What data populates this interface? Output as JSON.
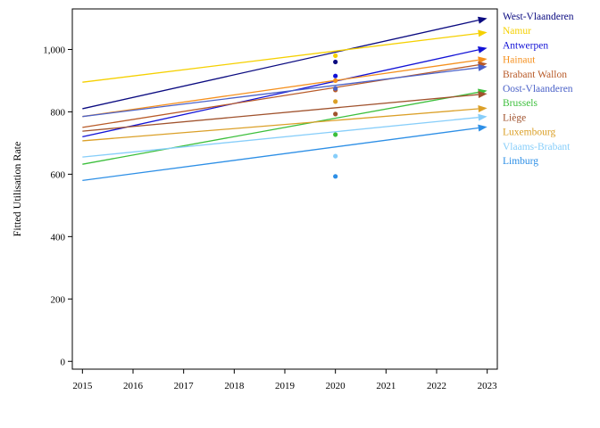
{
  "chart_data": {
    "type": "line",
    "title": "",
    "xlabel": "",
    "ylabel": "Fitted Utilisation Rate",
    "xlim": [
      2014.8,
      2023.2
    ],
    "ylim": [
      -25,
      1130
    ],
    "x_ticks": [
      2015,
      2016,
      2017,
      2018,
      2019,
      2020,
      2021,
      2022,
      2023
    ],
    "y_ticks": [
      0,
      200,
      400,
      600,
      800,
      1000
    ],
    "y_tick_labels": [
      "0",
      "200",
      "400",
      "600",
      "800",
      "1,000"
    ],
    "grid": false,
    "legend_position": "right",
    "series": [
      {
        "name": "West-Vlaanderen",
        "color": "#0a0a80",
        "x": [
          2015,
          2023
        ],
        "y": [
          810,
          1100
        ],
        "point": {
          "x": 2020,
          "y": 960
        }
      },
      {
        "name": "Namur",
        "color": "#f5d000",
        "x": [
          2015,
          2023
        ],
        "y": [
          895,
          1055
        ],
        "point": {
          "x": 2020,
          "y": 980
        }
      },
      {
        "name": "Antwerpen",
        "color": "#1212d6",
        "x": [
          2015,
          2023
        ],
        "y": [
          720,
          1005
        ],
        "point": {
          "x": 2020,
          "y": 915
        }
      },
      {
        "name": "Hainaut",
        "color": "#f5901e",
        "x": [
          2015,
          2023
        ],
        "y": [
          785,
          970
        ],
        "point": {
          "x": 2020,
          "y": 900
        }
      },
      {
        "name": "Brabant Wallon",
        "color": "#b85a28",
        "x": [
          2015,
          2023
        ],
        "y": [
          750,
          955
        ],
        "point": {
          "x": 2020,
          "y": 870
        }
      },
      {
        "name": "Oost-Vlaanderen",
        "color": "#4b62c8",
        "x": [
          2015,
          2023
        ],
        "y": [
          785,
          945
        ],
        "point": {
          "x": 2020,
          "y": 875
        }
      },
      {
        "name": "Brussels",
        "color": "#3cbf3c",
        "x": [
          2015,
          2023
        ],
        "y": [
          632,
          868
        ],
        "point": {
          "x": 2020,
          "y": 727
        }
      },
      {
        "name": "Liège",
        "color": "#a0522d",
        "x": [
          2015,
          2023
        ],
        "y": [
          738,
          858
        ],
        "point": {
          "x": 2020,
          "y": 793
        }
      },
      {
        "name": "Luxembourg",
        "color": "#dba028",
        "x": [
          2015,
          2023
        ],
        "y": [
          707,
          812
        ],
        "point": {
          "x": 2020,
          "y": 833
        }
      },
      {
        "name": "Vlaams-Brabant",
        "color": "#87cefa",
        "x": [
          2015,
          2023
        ],
        "y": [
          655,
          785
        ],
        "point": {
          "x": 2020,
          "y": 658
        }
      },
      {
        "name": "Limburg",
        "color": "#2d8fe6",
        "x": [
          2015,
          2023
        ],
        "y": [
          580,
          752
        ],
        "point": {
          "x": 2020,
          "y": 593
        }
      }
    ]
  }
}
